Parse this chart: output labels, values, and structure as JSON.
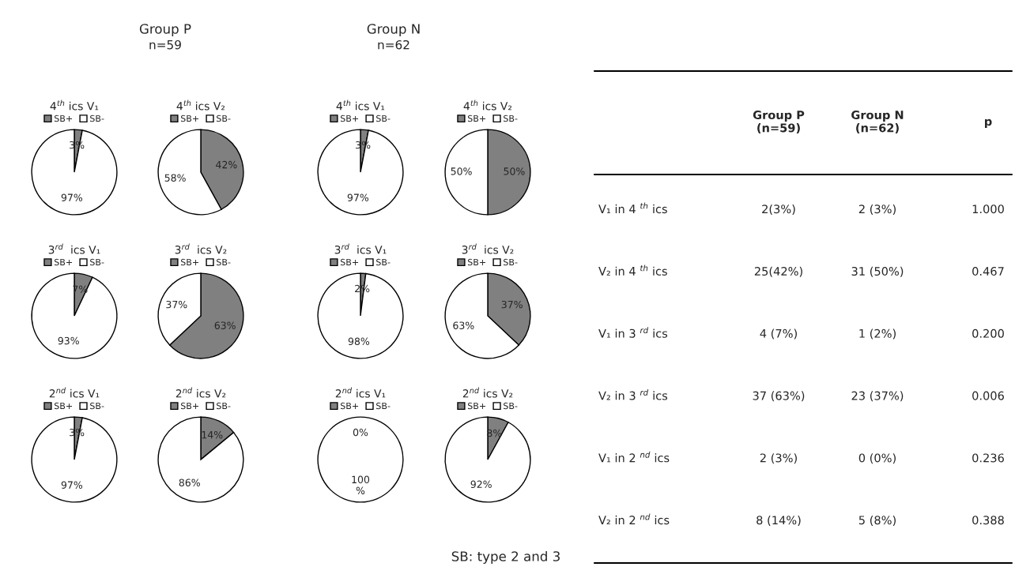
{
  "chart_data": [
    {
      "type": "pie",
      "title": "4$^{th}$ ics V₁",
      "categories": [
        "SB+",
        "SB-"
      ],
      "values": [
        3,
        97
      ],
      "value_labels": [
        "3%",
        "97%"
      ],
      "colors": [
        "#808080",
        "#ffffff"
      ],
      "legend": "top"
    },
    {
      "type": "pie",
      "title": "4$^{th}$ ics V₂",
      "categories": [
        "SB+",
        "SB-"
      ],
      "values": [
        42,
        58
      ],
      "value_labels": [
        "42%",
        "58%"
      ],
      "colors": [
        "#808080",
        "#ffffff"
      ],
      "legend": "top"
    },
    {
      "type": "pie",
      "title": "4$^{th}$ ics V₁",
      "categories": [
        "SB+",
        "SB-"
      ],
      "values": [
        3,
        97
      ],
      "value_labels": [
        "3%",
        "97%"
      ],
      "colors": [
        "#808080",
        "#ffffff"
      ],
      "legend": "top"
    },
    {
      "type": "pie",
      "title": "4$^{th}$ ics V₂",
      "categories": [
        "SB+",
        "SB-"
      ],
      "values": [
        50,
        50
      ],
      "value_labels": [
        "50%",
        "50%"
      ],
      "colors": [
        "#808080",
        "#ffffff"
      ],
      "legend": "top"
    },
    {
      "type": "pie",
      "title": "3$^{rd}$  ics V₁",
      "categories": [
        "SB+",
        "SB-"
      ],
      "values": [
        7,
        93
      ],
      "value_labels": [
        "7%",
        "93%"
      ],
      "colors": [
        "#808080",
        "#ffffff"
      ],
      "legend": "top"
    },
    {
      "type": "pie",
      "title": "3$^{rd}$  ics V₂",
      "categories": [
        "SB+",
        "SB-"
      ],
      "values": [
        63,
        37
      ],
      "value_labels": [
        "63%",
        "37%"
      ],
      "colors": [
        "#808080",
        "#ffffff"
      ],
      "legend": "top"
    },
    {
      "type": "pie",
      "title": "3$^{rd}$  ics V₁",
      "categories": [
        "SB+",
        "SB-"
      ],
      "values": [
        2,
        98
      ],
      "value_labels": [
        "2%",
        "98%"
      ],
      "colors": [
        "#808080",
        "#ffffff"
      ],
      "legend": "top"
    },
    {
      "type": "pie",
      "title": "3$^{rd}$  ics V₂",
      "categories": [
        "SB+",
        "SB-"
      ],
      "values": [
        37,
        63
      ],
      "value_labels": [
        "37%",
        "63%"
      ],
      "colors": [
        "#808080",
        "#ffffff"
      ],
      "legend": "top"
    },
    {
      "type": "pie",
      "title": "2$^{nd}$ ics V₁",
      "categories": [
        "SB+",
        "SB-"
      ],
      "values": [
        3,
        97
      ],
      "value_labels": [
        "3%",
        "97%"
      ],
      "colors": [
        "#808080",
        "#ffffff"
      ],
      "legend": "top"
    },
    {
      "type": "pie",
      "title": "2$^{nd}$ ics V₂",
      "categories": [
        "SB+",
        "SB-"
      ],
      "values": [
        14,
        86
      ],
      "value_labels": [
        "14%",
        "86%"
      ],
      "colors": [
        "#808080",
        "#ffffff"
      ],
      "legend": "top"
    },
    {
      "type": "pie",
      "title": "2$^{nd}$ ics V₁",
      "categories": [
        "SB+",
        "SB-"
      ],
      "values": [
        0,
        100
      ],
      "value_labels": [
        "0%",
        "100\n%"
      ],
      "colors": [
        "#808080",
        "#ffffff"
      ],
      "legend": "top"
    },
    {
      "type": "pie",
      "title": "2$^{nd}$ ics V₂",
      "categories": [
        "SB+",
        "SB-"
      ],
      "values": [
        8,
        92
      ],
      "value_labels": [
        "8%",
        "92%"
      ],
      "colors": [
        "#808080",
        "#ffffff"
      ],
      "legend": "top"
    },
    {
      "type": "other",
      "annotations": [
        "Group P",
        "n=59",
        "Group N",
        "n=62",
        "SB: type 2 and 3",
        "Group P\n(n=59)",
        "Group N\n(n=62)",
        "p",
        "V₁ in 4 $^{th}$ ics",
        "2(3%)",
        "2 (3%)",
        "1.000",
        "V₂ in 4 $^{th}$ ics",
        "25(42%)",
        "31 (50%)",
        "0.467",
        "V₁ in 3 $^{rd}$ ics",
        "4 (7%)",
        "1 (2%)",
        "0.200",
        "V₂ in 3 $^{rd}$ ics",
        "37 (63%)",
        "23 (37%)",
        "0.006",
        "V₁ in 2 $^{nd}$ ics",
        "2 (3%)",
        "0 (0%)",
        "0.236",
        "V₂ in 2 $^{nd}$ ics",
        "8 (14%)",
        "5 (8%)",
        "0.388"
      ]
    }
  ]
}
